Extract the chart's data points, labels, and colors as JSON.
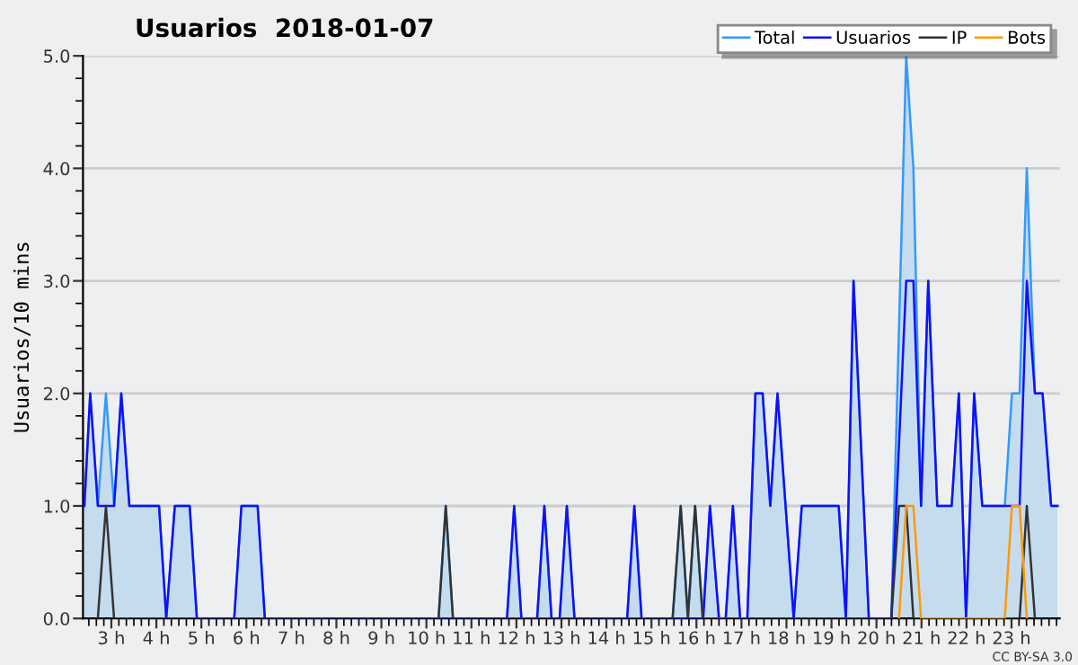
{
  "chart_data": {
    "type": "line",
    "title": "Usuarios  2018-01-07",
    "ylabel": "Usuarios/10 mins",
    "annotations": [
      "CC BY-SA 3.0"
    ],
    "xlim": [
      2.37,
      24.07
    ],
    "ylim": [
      0,
      5
    ],
    "xticks": [
      {
        "value": 3,
        "label": "3 h"
      },
      {
        "value": 4,
        "label": "4 h"
      },
      {
        "value": 5,
        "label": "5 h"
      },
      {
        "value": 6,
        "label": "6 h"
      },
      {
        "value": 7,
        "label": "7 h"
      },
      {
        "value": 8,
        "label": "8 h"
      },
      {
        "value": 9,
        "label": "9 h"
      },
      {
        "value": 10,
        "label": "10 h"
      },
      {
        "value": 11,
        "label": "11 h"
      },
      {
        "value": 12,
        "label": "12 h"
      },
      {
        "value": 13,
        "label": "13 h"
      },
      {
        "value": 14,
        "label": "14 h"
      },
      {
        "value": 15,
        "label": "15 h"
      },
      {
        "value": 16,
        "label": "16 h"
      },
      {
        "value": 17,
        "label": "17 h"
      },
      {
        "value": 18,
        "label": "18 h"
      },
      {
        "value": 19,
        "label": "19 h"
      },
      {
        "value": 20,
        "label": "20 h"
      },
      {
        "value": 21,
        "label": "21 h"
      },
      {
        "value": 22,
        "label": "22 h"
      },
      {
        "value": 23,
        "label": "23 h"
      }
    ],
    "yticks": [
      {
        "value": 0,
        "label": "0.0"
      },
      {
        "value": 1,
        "label": "1.0"
      },
      {
        "value": 2,
        "label": "2.0"
      },
      {
        "value": 3,
        "label": "3.0"
      },
      {
        "value": 4,
        "label": "4.0"
      },
      {
        "value": 5,
        "label": "5.0"
      }
    ],
    "grid": "y",
    "legend": "top right",
    "marker": "none",
    "line_style": "solid",
    "series": [
      {
        "name": "Total",
        "type": "area",
        "color": "#3399ff",
        "x": [
          2.4,
          2.53,
          2.7,
          2.88,
          3.06,
          3.22,
          3.4,
          4.06,
          4.22,
          4.41,
          4.74,
          4.9,
          5.73,
          5.89,
          6.25,
          6.41,
          10.27,
          10.43,
          10.59,
          11.79,
          11.95,
          12.11,
          12.46,
          12.62,
          12.78,
          12.96,
          13.12,
          13.29,
          14.46,
          14.62,
          14.78,
          15.47,
          15.65,
          15.81,
          15.97,
          16.14,
          16.3,
          16.5,
          16.65,
          16.81,
          16.97,
          17.13,
          17.31,
          17.47,
          17.64,
          17.8,
          18.16,
          18.34,
          19.16,
          19.32,
          19.49,
          19.83,
          20.33,
          20.66,
          20.82,
          20.99,
          21.15,
          21.35,
          21.67,
          21.83,
          21.99,
          22.17,
          22.35,
          22.85,
          23.01,
          23.18,
          23.34,
          23.52,
          23.69,
          23.88,
          24.02
        ],
        "values": [
          1,
          2,
          1,
          2,
          1,
          2,
          1,
          1,
          0,
          1,
          1,
          0,
          0,
          1,
          1,
          0,
          0,
          1,
          0,
          0,
          1,
          0,
          0,
          1,
          0,
          0,
          1,
          0,
          0,
          1,
          0,
          0,
          1,
          0,
          1,
          0,
          1,
          0,
          0,
          1,
          0,
          0,
          2,
          2,
          1,
          2,
          0,
          1,
          1,
          0,
          3,
          0,
          0,
          5,
          4,
          1,
          3,
          1,
          1,
          2,
          0,
          2,
          1,
          1,
          2,
          2,
          4,
          2,
          2,
          1,
          1
        ]
      },
      {
        "name": "Usuarios",
        "color": "#1010ff",
        "x": [
          2.4,
          2.53,
          2.7,
          3.06,
          3.22,
          3.4,
          4.06,
          4.22,
          4.41,
          4.74,
          4.9,
          5.73,
          5.89,
          6.25,
          6.41,
          11.79,
          11.95,
          12.11,
          12.46,
          12.62,
          12.78,
          12.96,
          13.12,
          13.29,
          14.46,
          14.62,
          14.78,
          16.15,
          16.3,
          16.5,
          16.65,
          16.81,
          16.97,
          17.13,
          17.31,
          17.47,
          17.64,
          17.8,
          18.16,
          18.34,
          19.16,
          19.32,
          19.49,
          19.83,
          20.33,
          20.66,
          20.82,
          20.99,
          21.15,
          21.35,
          21.67,
          21.83,
          21.99,
          22.17,
          22.35,
          23.18,
          23.34,
          23.52,
          23.69,
          23.88,
          24.02
        ],
        "values": [
          1,
          2,
          1,
          1,
          2,
          1,
          1,
          0,
          1,
          1,
          0,
          0,
          1,
          1,
          0,
          0,
          1,
          0,
          0,
          1,
          0,
          0,
          1,
          0,
          0,
          1,
          0,
          0,
          1,
          0,
          0,
          1,
          0,
          0,
          2,
          2,
          1,
          2,
          0,
          1,
          1,
          0,
          3,
          0,
          0,
          3,
          3,
          1,
          3,
          1,
          1,
          2,
          0,
          2,
          1,
          1,
          3,
          2,
          2,
          1,
          1
        ]
      },
      {
        "name": "IP",
        "color": "#333333",
        "x": [
          2.7,
          2.88,
          3.06,
          6.0,
          10.27,
          10.43,
          10.59,
          13.0,
          15.47,
          15.65,
          15.81,
          15.97,
          16.14,
          18.0,
          20.33,
          20.5,
          20.66,
          20.82,
          22.0,
          23.18,
          23.34,
          23.52
        ],
        "values": [
          0,
          1,
          0,
          0,
          0,
          1,
          0,
          0,
          0,
          1,
          0,
          1,
          0,
          0,
          0,
          1,
          1,
          0,
          0,
          0,
          1,
          0
        ]
      },
      {
        "name": "Bots",
        "color": "#ff9900",
        "x": [
          20.5,
          20.66,
          20.82,
          20.99,
          22.0,
          22.85,
          23.01,
          23.18,
          23.34
        ],
        "values": [
          0,
          1,
          1,
          0,
          0,
          0,
          1,
          1,
          0
        ]
      }
    ]
  }
}
